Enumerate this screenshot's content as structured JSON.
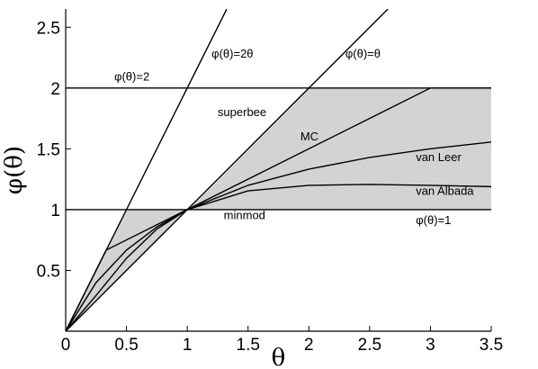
{
  "chart_data": {
    "type": "line",
    "xlabel": "θ",
    "ylabel": "φ(θ)",
    "xlim": [
      0,
      3.5
    ],
    "ylim": [
      0,
      2.65
    ],
    "grid": false,
    "x_ticks": [
      "0",
      "0.5",
      "1",
      "1.5",
      "2",
      "2.5",
      "3",
      "3.5"
    ],
    "y_ticks": [
      "0.5",
      "1",
      "1.5",
      "2",
      "2.5"
    ],
    "x_tick_values": [
      0,
      0.5,
      1,
      1.5,
      2,
      2.5,
      3,
      3.5
    ],
    "y_tick_values": [
      0.5,
      1,
      1.5,
      2,
      2.5
    ],
    "shaded_region": {
      "color": "#d3d3d3",
      "upper": [
        [
          0,
          0
        ],
        [
          0.5,
          1
        ],
        [
          1,
          1
        ],
        [
          2,
          2
        ],
        [
          3.5,
          2
        ]
      ],
      "lower": [
        [
          0,
          0
        ],
        [
          1,
          1
        ],
        [
          3.5,
          1
        ]
      ]
    },
    "series": [
      {
        "name": "φ(θ)=2θ",
        "x": [
          0,
          1.325
        ],
        "y": [
          0,
          2.65
        ]
      },
      {
        "name": "φ(θ)=θ",
        "x": [
          0,
          2.65
        ],
        "y": [
          0,
          2.65
        ]
      },
      {
        "name": "φ(θ)=2",
        "x": [
          0,
          3.5
        ],
        "y": [
          2,
          2
        ]
      },
      {
        "name": "φ(θ)=1",
        "x": [
          0,
          3.5
        ],
        "y": [
          1,
          1
        ]
      },
      {
        "name": "MC",
        "x": [
          0,
          0.333,
          3,
          3.5
        ],
        "y": [
          0,
          0.667,
          2,
          2
        ]
      },
      {
        "name": "van Leer",
        "x": [
          0,
          0.25,
          0.5,
          0.75,
          1,
          1.5,
          2,
          2.5,
          3,
          3.5
        ],
        "y": [
          0,
          0.4,
          0.667,
          0.857,
          1,
          1.2,
          1.333,
          1.429,
          1.5,
          1.556
        ]
      },
      {
        "name": "van Albada",
        "x": [
          0,
          0.25,
          0.5,
          0.75,
          1,
          1.5,
          2,
          2.5,
          3,
          3.5
        ],
        "y": [
          0,
          0.294,
          0.6,
          0.84,
          1,
          1.154,
          1.2,
          1.207,
          1.2,
          1.189
        ]
      }
    ],
    "annotations": [
      {
        "text": "φ(θ)=2θ",
        "x": 1.2,
        "y": 2.25
      },
      {
        "text": "φ(θ)=θ",
        "x": 2.3,
        "y": 2.25
      },
      {
        "text": "φ(θ)=2",
        "x": 0.4,
        "y": 2.06
      },
      {
        "text": "superbee",
        "x": 1.25,
        "y": 1.77
      },
      {
        "text": "MC",
        "x": 1.93,
        "y": 1.57
      },
      {
        "text": "van Leer",
        "x": 2.88,
        "y": 1.4
      },
      {
        "text": "van Albada",
        "x": 2.88,
        "y": 1.12
      },
      {
        "text": "minmod",
        "x": 1.3,
        "y": 0.92
      },
      {
        "text": "φ(θ)=1",
        "x": 2.88,
        "y": 0.88
      }
    ]
  }
}
